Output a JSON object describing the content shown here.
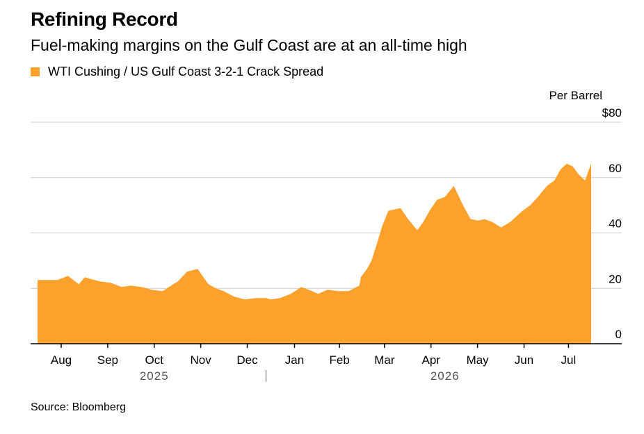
{
  "title": "Refining Record",
  "subtitle": "Fuel-making margins on the Gulf Coast are at an all-time high",
  "source": "Source: Bloomberg",
  "colors": {
    "area": "#fca12c",
    "grid": "#cccccc",
    "axis": "#000000"
  },
  "chart_data": {
    "type": "area",
    "ylabel": "Per Barrel",
    "y_ticks": [
      "$80",
      "60",
      "40",
      "20",
      "0"
    ],
    "ylim": [
      0,
      80
    ],
    "x_ticks": [
      "Aug",
      "Sep",
      "Oct",
      "Nov",
      "Dec",
      "Jan",
      "Feb",
      "Mar",
      "Apr",
      "May",
      "Jun",
      "Jul"
    ],
    "years": [
      "2025",
      "2026"
    ],
    "series": [
      {
        "name": "WTI Cushing / US Gulf Coast 3-2-1 Crack Spread",
        "x": [
          "2025-08-01",
          "2025-08-07",
          "2025-08-14",
          "2025-08-21",
          "2025-08-28",
          "2025-09-01",
          "2025-09-04",
          "2025-09-11",
          "2025-09-18",
          "2025-09-25",
          "2025-10-01",
          "2025-10-08",
          "2025-10-15",
          "2025-10-22",
          "2025-10-29",
          "2025-11-01",
          "2025-11-07",
          "2025-11-14",
          "2025-11-21",
          "2025-11-26",
          "2025-12-01",
          "2025-12-08",
          "2025-12-15",
          "2025-12-22",
          "2025-12-29",
          "2026-01-01",
          "2026-01-07",
          "2026-01-14",
          "2026-01-21",
          "2026-01-28",
          "2026-02-01",
          "2026-02-07",
          "2026-02-14",
          "2026-02-21",
          "2026-02-28",
          "2026-03-01",
          "2026-03-05",
          "2026-03-08",
          "2026-03-12",
          "2026-03-15",
          "2026-03-19",
          "2026-03-23",
          "2026-03-27",
          "2026-04-01",
          "2026-04-07",
          "2026-04-11",
          "2026-04-15",
          "2026-04-20",
          "2026-04-25",
          "2026-05-01",
          "2026-05-07",
          "2026-05-12",
          "2026-05-17",
          "2026-05-21",
          "2026-05-26",
          "2026-06-01",
          "2026-06-07",
          "2026-06-11",
          "2026-06-15",
          "2026-06-20",
          "2026-06-25",
          "2026-07-01",
          "2026-07-06",
          "2026-07-10",
          "2026-07-14",
          "2026-07-18",
          "2026-07-22",
          "2026-07-26",
          "2026-07-30"
        ],
        "values": [
          23.0,
          23.0,
          23.0,
          24.5,
          21.5,
          24.0,
          23.5,
          22.5,
          22.0,
          20.5,
          21.0,
          20.5,
          19.5,
          19.0,
          21.5,
          22.5,
          26.0,
          27.0,
          21.5,
          20.0,
          19.0,
          17.0,
          16.0,
          16.5,
          16.5,
          16.0,
          16.5,
          18.0,
          20.5,
          19.0,
          18.0,
          19.5,
          19.0,
          19.0,
          21.0,
          24.0,
          27.0,
          30.0,
          37.0,
          42.5,
          48.0,
          48.5,
          49.0,
          45.0,
          41.0,
          44.0,
          48.0,
          52.0,
          53.0,
          57.0,
          50.0,
          45.0,
          44.5,
          45.0,
          44.0,
          42.0,
          44.0,
          46.0,
          48.0,
          50.0,
          53.0,
          57.0,
          59.0,
          63.0,
          65.0,
          64.0,
          61.0,
          59.0,
          65.0
        ]
      }
    ]
  }
}
